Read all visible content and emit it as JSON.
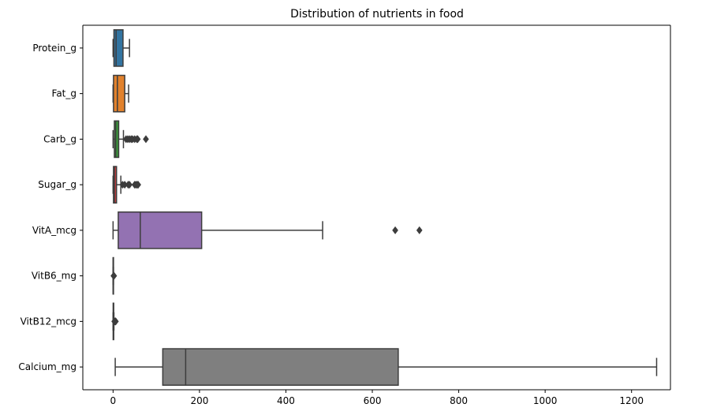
{
  "chart_data": {
    "type": "boxplot",
    "orientation": "horizontal",
    "title": "Distribution of nutrients in food",
    "xlabel": "",
    "ylabel": "",
    "xlim": [
      -70,
      1290
    ],
    "xticks": [
      0,
      200,
      400,
      600,
      800,
      1000,
      1200
    ],
    "grid": false,
    "categories": [
      "Protein_g",
      "Fat_g",
      "Carb_g",
      "Sugar_g",
      "VitA_mcg",
      "VitB6_mg",
      "VitB12_mcg",
      "Calcium_mg"
    ],
    "boxes": [
      {
        "name": "Protein_g",
        "whislo": 0,
        "q1": 2,
        "med": 7,
        "q3": 23,
        "whishi": 38,
        "fliers": [],
        "color": "#3274a1"
      },
      {
        "name": "Fat_g",
        "whislo": 0,
        "q1": 1,
        "med": 10,
        "q3": 27,
        "whishi": 36,
        "fliers": [],
        "color": "#e1812c"
      },
      {
        "name": "Carb_g",
        "whislo": 0,
        "q1": 3,
        "med": 6,
        "q3": 13,
        "whishi": 24,
        "fliers": [
          30,
          34,
          38,
          42,
          45,
          50,
          55,
          57,
          76
        ],
        "color": "#3a923a"
      },
      {
        "name": "Sugar_g",
        "whislo": 0,
        "q1": 1,
        "med": 3,
        "q3": 8,
        "whishi": 18,
        "fliers": [
          22,
          27,
          35,
          38,
          50,
          53,
          56,
          58
        ],
        "color": "#c03d3e"
      },
      {
        "name": "VitA_mcg",
        "whislo": 0,
        "q1": 12,
        "med": 63,
        "q3": 205,
        "whishi": 485,
        "fliers": [
          653,
          709
        ],
        "color": "#9372b2"
      },
      {
        "name": "VitB6_mg",
        "whislo": 0,
        "q1": 0.1,
        "med": 0.2,
        "q3": 0.4,
        "whishi": 0.9,
        "fliers": [
          1.2,
          1.6,
          2.2
        ],
        "color": "#845b53"
      },
      {
        "name": "VitB12_mcg",
        "whislo": 0,
        "q1": 0.2,
        "med": 0.8,
        "q3": 1.5,
        "whishi": 2,
        "fliers": [
          3,
          4.5,
          5.5,
          6.2
        ],
        "color": "#d684bd"
      },
      {
        "name": "Calcium_mg",
        "whislo": 5,
        "q1": 115,
        "med": 168,
        "q3": 660,
        "whishi": 1258,
        "fliers": [],
        "color": "#7f7f7f"
      }
    ]
  }
}
